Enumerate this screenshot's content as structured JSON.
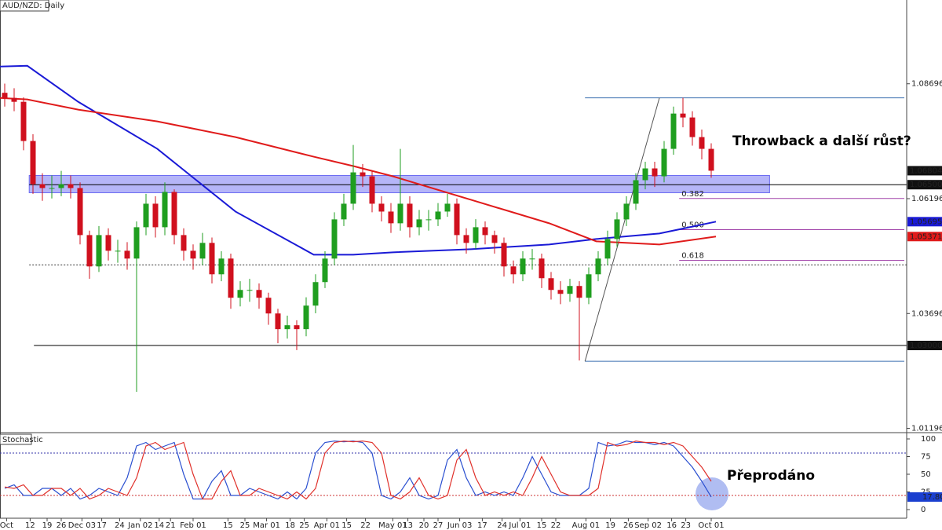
{
  "chart_data": [
    {
      "type": "candlestick",
      "title": "AUD/NZD: Daily",
      "xlim": [
        -0.5,
        95.75
      ],
      "ylim": [
        1.0112,
        1.1052
      ],
      "yticks": [
        1.08696,
        1.06196,
        1.03696,
        1.01196
      ],
      "xticks": [
        {
          "value": 0.2,
          "label": "Oct"
        },
        {
          "value": 2.7,
          "label": "12"
        },
        {
          "value": 4.5,
          "label": "19"
        },
        {
          "value": 6,
          "label": "26"
        },
        {
          "value": 8.2,
          "label": "Dec 03"
        },
        {
          "value": 10.3,
          "label": "17"
        },
        {
          "value": 12.2,
          "label": "24"
        },
        {
          "value": 14.4,
          "label": "Jan 02"
        },
        {
          "value": 16.4,
          "label": "14"
        },
        {
          "value": 17.6,
          "label": "21"
        },
        {
          "value": 20,
          "label": "Feb 01"
        },
        {
          "value": 23.7,
          "label": "15"
        },
        {
          "value": 25.5,
          "label": "25"
        },
        {
          "value": 27.8,
          "label": "Mar 01"
        },
        {
          "value": 30.3,
          "label": "18"
        },
        {
          "value": 31.8,
          "label": "25"
        },
        {
          "value": 34.2,
          "label": "Apr 01"
        },
        {
          "value": 36.3,
          "label": "15"
        },
        {
          "value": 38.3,
          "label": "22"
        },
        {
          "value": 41.2,
          "label": "May 01"
        },
        {
          "value": 42.8,
          "label": "13"
        },
        {
          "value": 44.5,
          "label": "20"
        },
        {
          "value": 46,
          "label": "27"
        },
        {
          "value": 48.3,
          "label": "Jun 03"
        },
        {
          "value": 50.7,
          "label": "17"
        },
        {
          "value": 52.8,
          "label": "24"
        },
        {
          "value": 54.7,
          "label": "Jul 01"
        },
        {
          "value": 57,
          "label": "15"
        },
        {
          "value": 58.5,
          "label": "22"
        },
        {
          "value": 61.7,
          "label": "Aug 01"
        },
        {
          "value": 64.3,
          "label": "19"
        },
        {
          "value": 66.2,
          "label": "26"
        },
        {
          "value": 68.3,
          "label": "Sep 02"
        },
        {
          "value": 70.8,
          "label": "16"
        },
        {
          "value": 72.3,
          "label": "23"
        },
        {
          "value": 75,
          "label": "Oct 01"
        }
      ],
      "up_color": "#1f9e1f",
      "down_color": "#d0101e",
      "candles": [
        [
          1.085,
          1.087,
          1.082,
          1.08389
        ],
        [
          1.08389,
          1.086,
          1.081,
          1.08304
        ],
        [
          1.08304,
          1.084,
          1.0725,
          1.07451
        ],
        [
          1.07451,
          1.076,
          1.063,
          1.06512
        ],
        [
          1.06512,
          1.0675,
          1.0615,
          1.06427
        ],
        [
          1.06427,
          1.067,
          1.062,
          1.06427
        ],
        [
          1.06427,
          1.068,
          1.0625,
          1.06512
        ],
        [
          1.06512,
          1.067,
          1.062,
          1.06427
        ],
        [
          1.06427,
          1.0655,
          1.052,
          1.05403
        ],
        [
          1.05403,
          1.055,
          1.0445,
          1.04721
        ],
        [
          1.04721,
          1.056,
          1.046,
          1.05403
        ],
        [
          1.05403,
          1.0555,
          1.0485,
          1.05062
        ],
        [
          1.05062,
          1.053,
          1.048,
          1.05062
        ],
        [
          1.05062,
          1.0525,
          1.0465,
          1.04892
        ],
        [
          1.04892,
          1.057,
          1.01992,
          1.05574
        ],
        [
          1.05574,
          1.063,
          1.054,
          1.06086
        ],
        [
          1.06086,
          1.0625,
          1.0535,
          1.05574
        ],
        [
          1.05574,
          1.0655,
          1.054,
          1.06342
        ],
        [
          1.06342,
          1.064,
          1.052,
          1.05403
        ],
        [
          1.05403,
          1.0555,
          1.0485,
          1.05062
        ],
        [
          1.05062,
          1.052,
          1.0465,
          1.04892
        ],
        [
          1.04892,
          1.0545,
          1.0475,
          1.05233
        ],
        [
          1.05233,
          1.0535,
          1.0435,
          1.0455
        ],
        [
          1.0455,
          1.0505,
          1.044,
          1.04892
        ],
        [
          1.04892,
          1.05,
          1.038,
          1.04039
        ],
        [
          1.04039,
          1.044,
          1.0385,
          1.04209
        ],
        [
          1.04209,
          1.0445,
          1.0395,
          1.04209
        ],
        [
          1.04209,
          1.0435,
          1.038,
          1.04039
        ],
        [
          1.04039,
          1.0415,
          1.0345,
          1.03697
        ],
        [
          1.03697,
          1.038,
          1.0305,
          1.03356
        ],
        [
          1.03356,
          1.0365,
          1.0315,
          1.03441
        ],
        [
          1.03441,
          1.0355,
          1.029,
          1.03356
        ],
        [
          1.03356,
          1.0405,
          1.032,
          1.03868
        ],
        [
          1.03868,
          1.0455,
          1.037,
          1.0438
        ],
        [
          1.0438,
          1.0505,
          1.0425,
          1.04892
        ],
        [
          1.04892,
          1.059,
          1.0475,
          1.05745
        ],
        [
          1.05745,
          1.063,
          1.056,
          1.06086
        ],
        [
          1.06086,
          1.07365,
          1.0595,
          1.06768
        ],
        [
          1.06768,
          1.0695,
          1.0645,
          1.06683
        ],
        [
          1.06683,
          1.068,
          1.059,
          1.06086
        ],
        [
          1.06086,
          1.0625,
          1.057,
          1.05915
        ],
        [
          1.05915,
          1.061,
          1.0545,
          1.0566
        ],
        [
          1.0566,
          1.0728,
          1.055,
          1.06086
        ],
        [
          1.06086,
          1.0625,
          1.0535,
          1.05574
        ],
        [
          1.05574,
          1.0595,
          1.054,
          1.05745
        ],
        [
          1.05745,
          1.0595,
          1.055,
          1.05745
        ],
        [
          1.05745,
          1.061,
          1.056,
          1.05915
        ],
        [
          1.05915,
          1.063,
          1.058,
          1.06086
        ],
        [
          1.06086,
          1.062,
          1.052,
          1.05403
        ],
        [
          1.05403,
          1.0555,
          1.05,
          1.05233
        ],
        [
          1.05233,
          1.0575,
          1.051,
          1.05574
        ],
        [
          1.05574,
          1.057,
          1.052,
          1.05403
        ],
        [
          1.05403,
          1.055,
          1.05,
          1.05233
        ],
        [
          1.05233,
          1.0535,
          1.045,
          1.04721
        ],
        [
          1.04721,
          1.0485,
          1.0435,
          1.0455
        ],
        [
          1.0455,
          1.0505,
          1.044,
          1.04892
        ],
        [
          1.04892,
          1.051,
          1.0465,
          1.04892
        ],
        [
          1.04892,
          1.05,
          1.0425,
          1.04465
        ],
        [
          1.04465,
          1.046,
          1.04,
          1.04209
        ],
        [
          1.04209,
          1.044,
          1.039,
          1.04124
        ],
        [
          1.04124,
          1.0445,
          1.0395,
          1.04295
        ],
        [
          1.04295,
          1.044,
          1.02674,
          1.04039
        ],
        [
          1.04039,
          1.047,
          1.039,
          1.0455
        ],
        [
          1.0455,
          1.0505,
          1.044,
          1.04892
        ],
        [
          1.04892,
          1.055,
          1.0475,
          1.05318
        ],
        [
          1.05318,
          1.059,
          1.0515,
          1.05745
        ],
        [
          1.05745,
          1.0625,
          1.056,
          1.06086
        ],
        [
          1.06086,
          1.0675,
          1.0595,
          1.06598
        ],
        [
          1.06598,
          1.07,
          1.064,
          1.06854
        ],
        [
          1.06854,
          1.07,
          1.0645,
          1.06683
        ],
        [
          1.06683,
          1.0745,
          1.0655,
          1.0728
        ],
        [
          1.0728,
          1.082,
          1.0715,
          1.08048
        ],
        [
          1.08048,
          1.08389,
          1.0775,
          1.07963
        ],
        [
          1.07963,
          1.081,
          1.0735,
          1.07536
        ],
        [
          1.07536,
          1.077,
          1.0705,
          1.0728
        ],
        [
          1.0728,
          1.074,
          1.0665,
          1.06804
        ]
      ],
      "overlays": {
        "x": [
          -0.5,
          2.4,
          7.8,
          16.2,
          24.5,
          32.8,
          37,
          41.2,
          49.5,
          57.8,
          62.8,
          69.5,
          75.5
        ],
        "series": [
          {
            "color": "#1a1ad6",
            "values": [
              1.09071,
              1.09088,
              1.08304,
              1.0728,
              1.05915,
              1.04977,
              1.04977,
              1.05028,
              1.05096,
              1.05199,
              1.05318,
              1.05437,
              1.05695
            ]
          },
          {
            "color": "#e01b1b",
            "values": [
              1.08389,
              1.08355,
              1.08133,
              1.07877,
              1.07536,
              1.07109,
              1.06905,
              1.06683,
              1.06171,
              1.0566,
              1.05267,
              1.05199,
              1.05371
            ]
          }
        ]
      },
      "zone": {
        "range": [
          1.06324,
          1.067
        ],
        "x": [
          2.6,
          81.2
        ],
        "color": "#6b6bf2"
      },
      "levels": [
        {
          "value": 1.065,
          "x": [
            2.6,
            95.75
          ],
          "color": "#000000",
          "dash": false
        },
        {
          "value": 1.04755,
          "x": [
            2.6,
            95.75
          ],
          "color": "#333333",
          "dash": true
        },
        {
          "value": 1.03,
          "x": [
            3.1,
            95.75
          ],
          "color": "#000000",
          "dash": false
        },
        {
          "value": 1.08389,
          "x": [
            61.6,
            95.5
          ],
          "color": "#3a6fb0",
          "dash": false
        },
        {
          "value": 1.02655,
          "x": [
            61.6,
            95.5
          ],
          "color": "#3a6fb0",
          "dash": false
        }
      ],
      "fib": {
        "x": [
          71.6,
          95.5
        ],
        "color": "#a040a8",
        "levels": [
          {
            "ratio": "0.382",
            "value": 1.062
          },
          {
            "ratio": "0.500",
            "value": 1.0552
          },
          {
            "ratio": "0.618",
            "value": 1.04855
          }
        ]
      },
      "trend_line": {
        "x": [
          61.6,
          69.5
        ],
        "values": [
          1.02655,
          1.08389
        ],
        "color": "#555555"
      },
      "price_labels": [
        {
          "value": 1.06804,
          "color": "#111111"
        },
        {
          "value": 1.065,
          "label": "1.06500",
          "color": "#111111"
        },
        {
          "value": 1.05695,
          "color": "#1a1ad6"
        },
        {
          "value": 1.05371,
          "color": "#e01b1b"
        },
        {
          "value": 1.03,
          "label": "1.03000",
          "color": "#111111"
        }
      ],
      "annotation": "Throwback a další růst?"
    },
    {
      "type": "line",
      "title": "Stochastic",
      "ylim": [
        0,
        100
      ],
      "yticks": [
        0,
        25,
        50,
        75,
        100
      ],
      "levels": [
        80,
        20
      ],
      "series": [
        {
          "color": "#2a4fd0",
          "values": [
            30,
            35,
            20,
            20,
            30,
            30,
            20,
            30,
            15,
            20,
            30,
            25,
            20,
            45,
            90,
            95,
            85,
            90,
            95,
            50,
            15,
            15,
            40,
            55,
            20,
            20,
            30,
            25,
            20,
            15,
            25,
            15,
            30,
            80,
            95,
            97,
            96,
            97,
            95,
            80,
            20,
            15,
            25,
            45,
            20,
            15,
            20,
            70,
            85,
            45,
            20,
            25,
            20,
            25,
            20,
            45,
            75,
            50,
            25,
            20,
            20,
            20,
            30,
            95,
            90,
            92,
            97,
            95,
            95,
            92,
            95,
            90,
            75,
            60,
            40,
            17.8
          ]
        },
        {
          "color": "#e0302a",
          "values": [
            32,
            30,
            35,
            20,
            20,
            30,
            30,
            20,
            30,
            15,
            20,
            30,
            25,
            20,
            45,
            90,
            95,
            85,
            90,
            95,
            50,
            15,
            15,
            40,
            55,
            20,
            20,
            30,
            25,
            20,
            15,
            25,
            15,
            30,
            80,
            95,
            97,
            96,
            97,
            95,
            80,
            20,
            15,
            25,
            45,
            20,
            15,
            20,
            70,
            85,
            45,
            20,
            25,
            20,
            25,
            20,
            45,
            75,
            50,
            25,
            20,
            20,
            20,
            30,
            95,
            90,
            92,
            97,
            95,
            95,
            92,
            95,
            90,
            75,
            60,
            40
          ]
        }
      ],
      "last_label": {
        "value": 17.8,
        "label": "17.80",
        "color": "#1a3fcf"
      },
      "annotation": "Přeprodáno"
    }
  ]
}
